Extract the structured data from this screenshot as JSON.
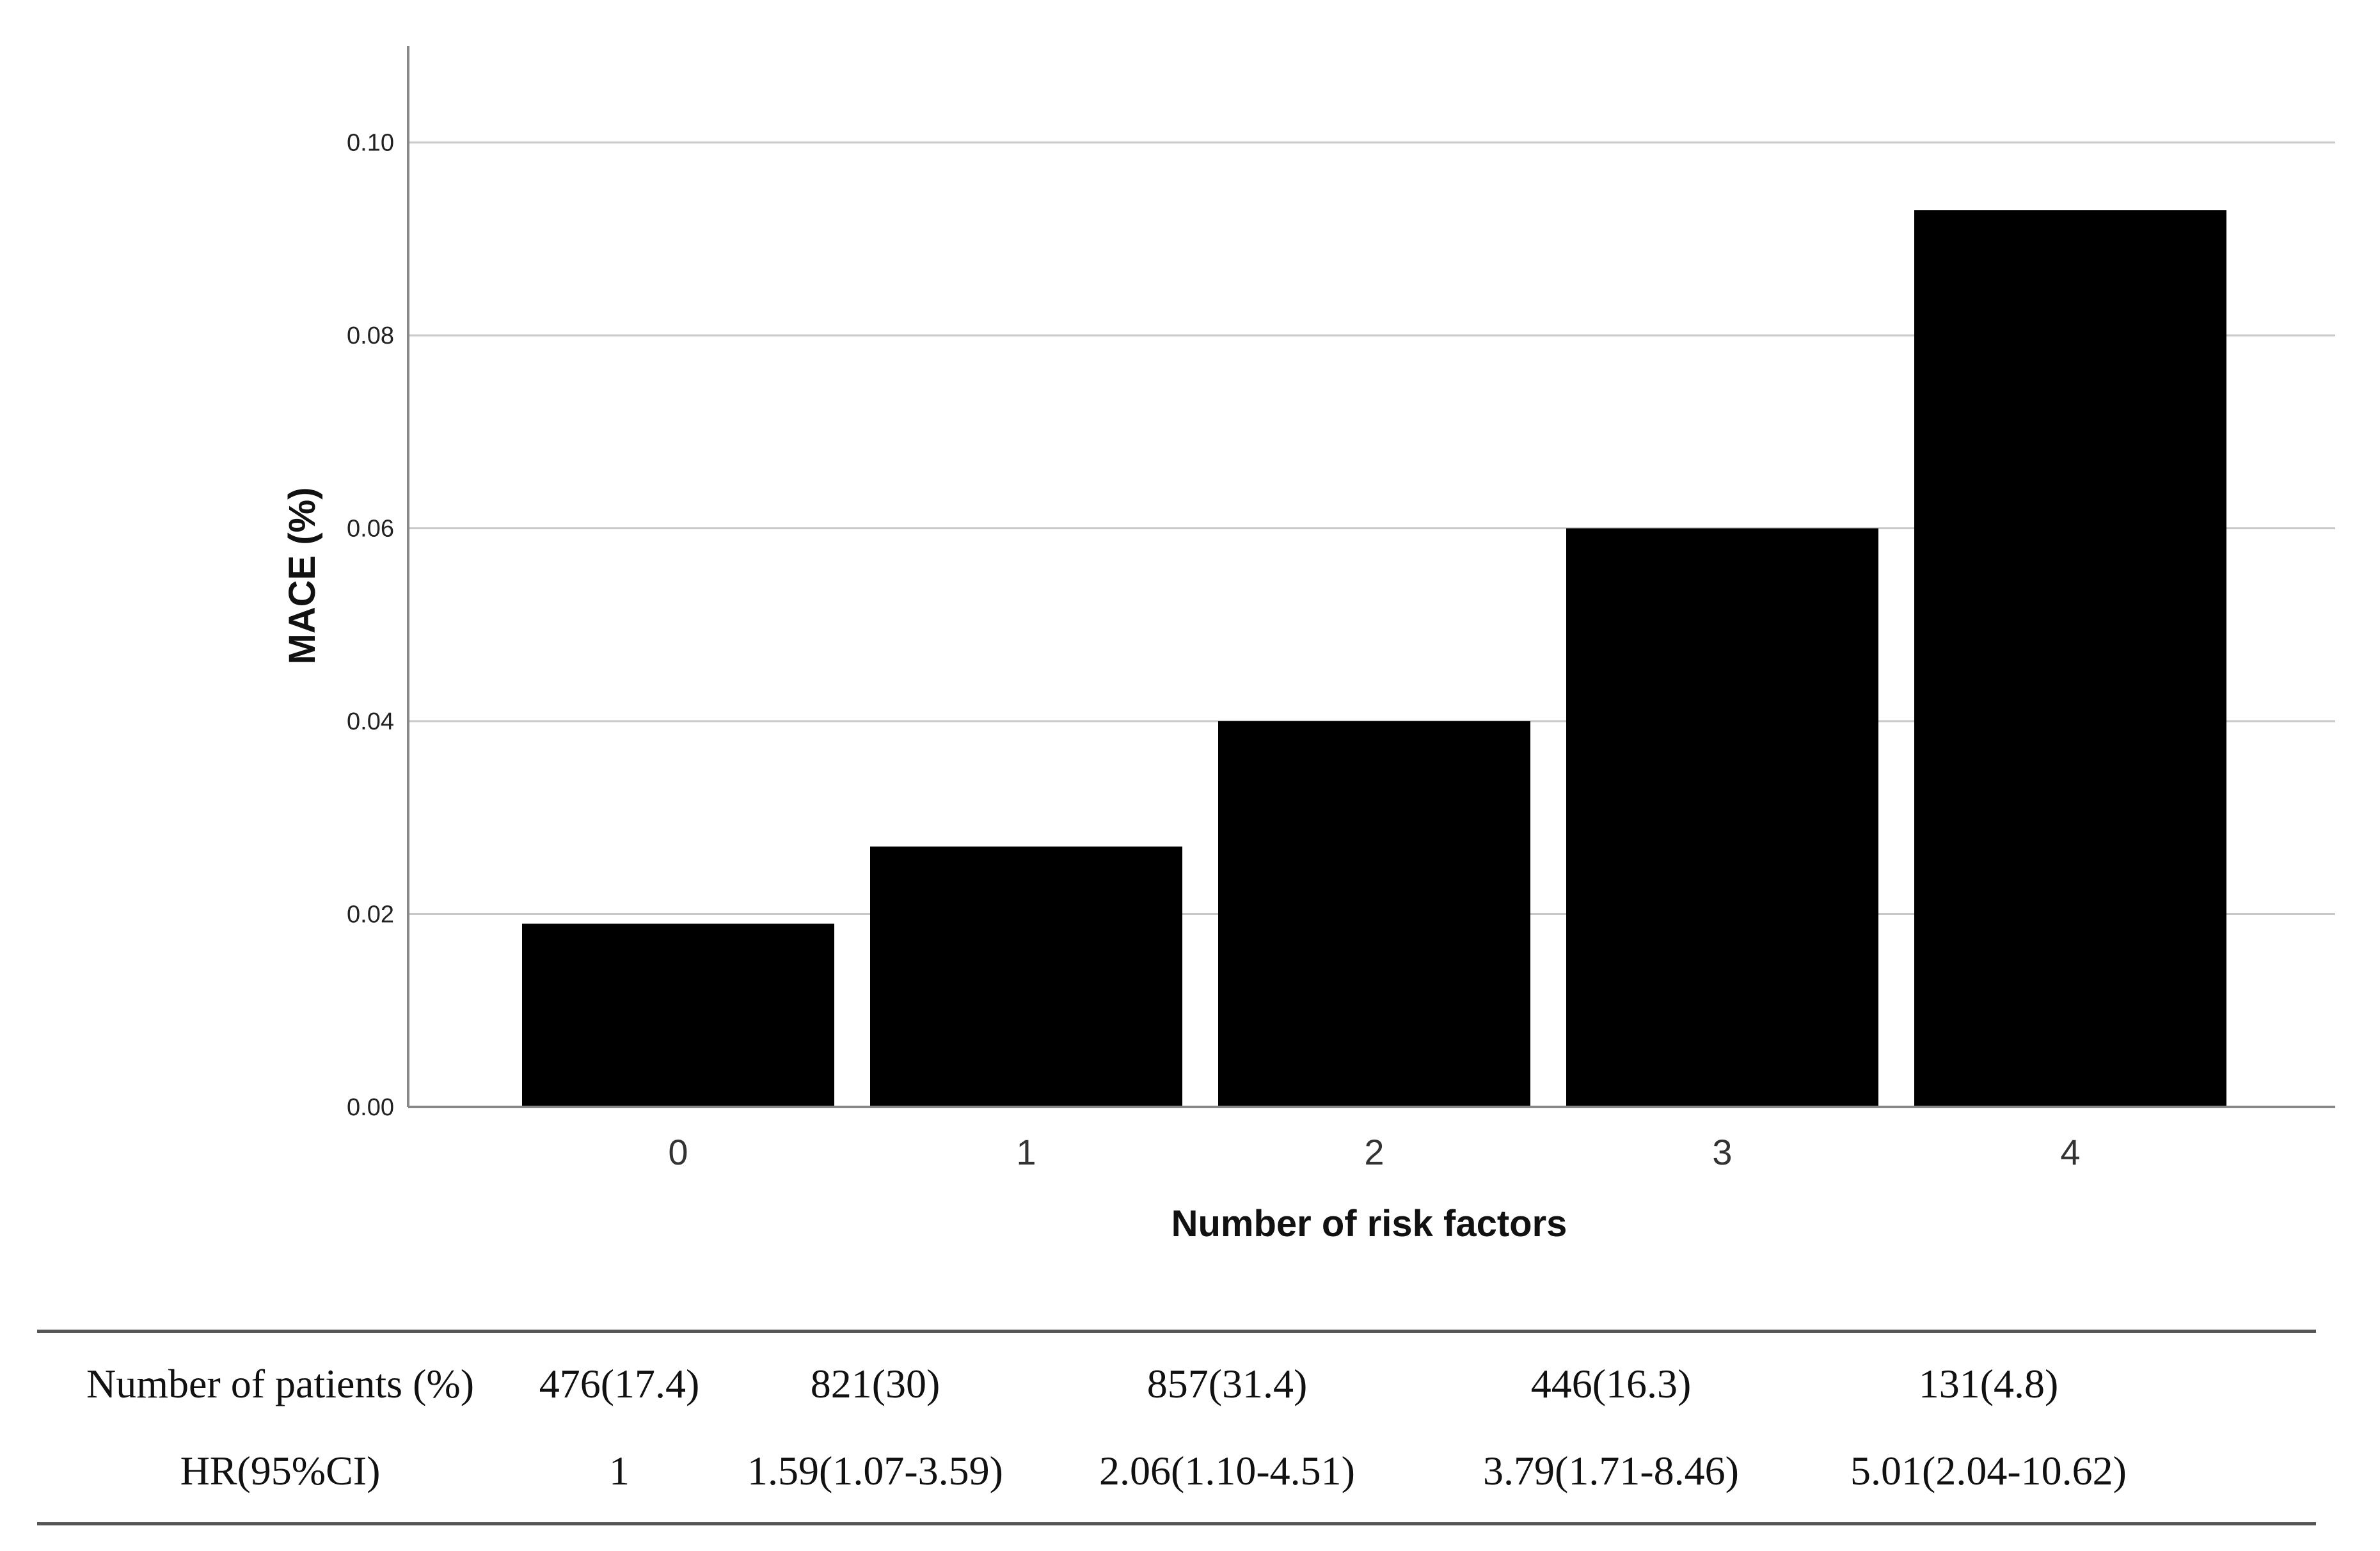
{
  "chart_data": {
    "type": "bar",
    "categories": [
      "0",
      "1",
      "2",
      "3",
      "4"
    ],
    "values": [
      0.019,
      0.027,
      0.04,
      0.06,
      0.093
    ],
    "xlabel": "Number of risk factors",
    "ylabel": "MACE (%)",
    "ylim": [
      0,
      0.11
    ],
    "yticks": [
      "0.00",
      "0.02",
      "0.04",
      "0.06",
      "0.08",
      "0.10"
    ],
    "grid": true,
    "bar_color": "#000000"
  },
  "table": {
    "rows": [
      {
        "label": "Number  of patients (%)",
        "cells": [
          "476(17.4)",
          "821(30)",
          "857(31.4)",
          "446(16.3)",
          "131(4.8)"
        ]
      },
      {
        "label": "HR(95%CI)",
        "cells": [
          "1",
          "1.59(1.07-3.59)",
          "2.06(1.10-4.51)",
          "3.79(1.71-8.46)",
          "5.01(2.04-10.62)"
        ]
      }
    ]
  }
}
